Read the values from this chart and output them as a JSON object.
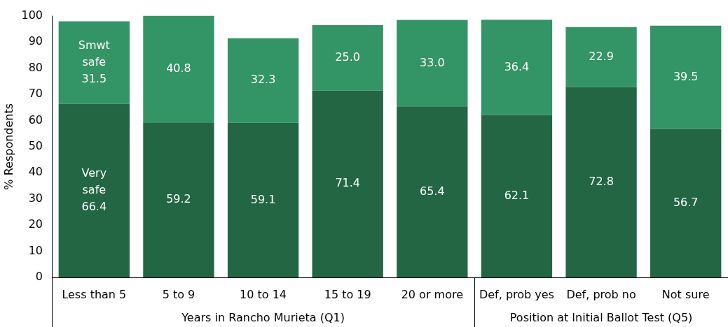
{
  "chart_data": {
    "type": "bar",
    "stacked": true,
    "categories": [
      "Less than 5",
      "5 to 9",
      "10 to 14",
      "15 to 19",
      "20 or more",
      "Def, prob yes",
      "Def, prob no",
      "Not sure"
    ],
    "series": [
      {
        "name": "Very safe",
        "color": "#226644",
        "values": [
          66.4,
          59.2,
          59.1,
          71.4,
          65.4,
          62.1,
          72.8,
          56.7
        ],
        "value_labels": [
          "66.4",
          "59.2",
          "59.1",
          "71.4",
          "65.4",
          "62.1",
          "72.8",
          "56.7"
        ]
      },
      {
        "name": "Smwt safe",
        "color": "#339465",
        "values": [
          31.5,
          40.8,
          32.3,
          25.0,
          33.0,
          36.4,
          22.9,
          39.5
        ],
        "value_labels": [
          "31.5",
          "40.8",
          "32.3",
          "25.0",
          "33.0",
          "36.4",
          "22.9",
          "39.5"
        ]
      }
    ],
    "ylabel": "% Respondents",
    "ylim": [
      0,
      100
    ],
    "yticks": [
      0,
      10,
      20,
      30,
      40,
      50,
      60,
      70,
      80,
      90,
      100
    ],
    "annotations": [
      "Years in Rancho Murieta (Q1)",
      "Position at Initial Ballot Test (Q5)"
    ]
  }
}
